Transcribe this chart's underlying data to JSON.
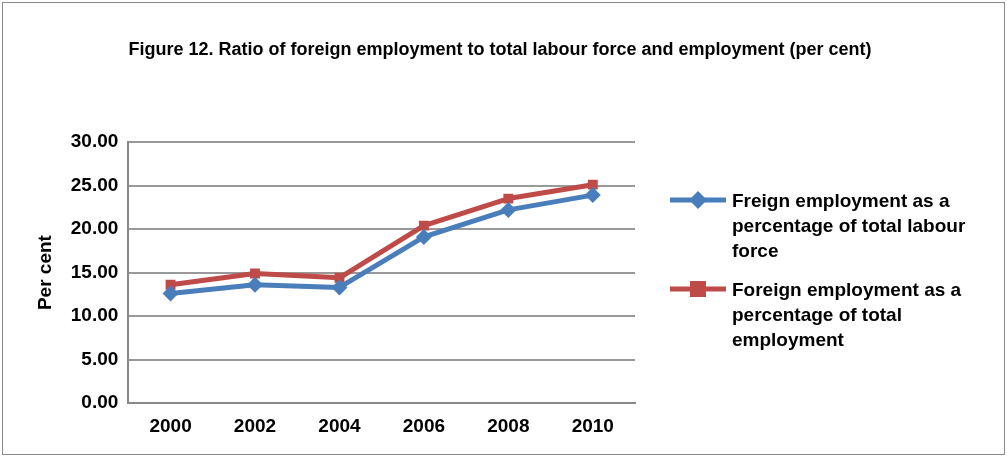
{
  "chart_data": {
    "type": "line",
    "title": "Figure 12. Ratio of foreign employment to total labour force and employment (per cent)",
    "ylabel": "Per cent",
    "categories": [
      "2000",
      "2002",
      "2004",
      "2006",
      "2008",
      "2010"
    ],
    "series": [
      {
        "name": "Freign employment as a percentage of total labour force",
        "color": "#4a7ebb",
        "marker": "diamond",
        "values": [
          12.6,
          13.6,
          13.3,
          19.1,
          22.2,
          23.9
        ]
      },
      {
        "name": "Foreign employment as a percentage of total employment",
        "color": "#be4b48",
        "marker": "square",
        "values": [
          13.6,
          14.9,
          14.4,
          20.4,
          23.5,
          25.1
        ]
      }
    ],
    "ylim": [
      0,
      30
    ],
    "yticks": [
      {
        "value": 0,
        "label": "0.00"
      },
      {
        "value": 5,
        "label": "5.00"
      },
      {
        "value": 10,
        "label": "10.00"
      },
      {
        "value": 15,
        "label": "15.00"
      },
      {
        "value": 20,
        "label": "20.00"
      },
      {
        "value": 25,
        "label": "25.00"
      },
      {
        "value": 30,
        "label": "30.00"
      }
    ],
    "grid": "y",
    "legend": "right"
  }
}
